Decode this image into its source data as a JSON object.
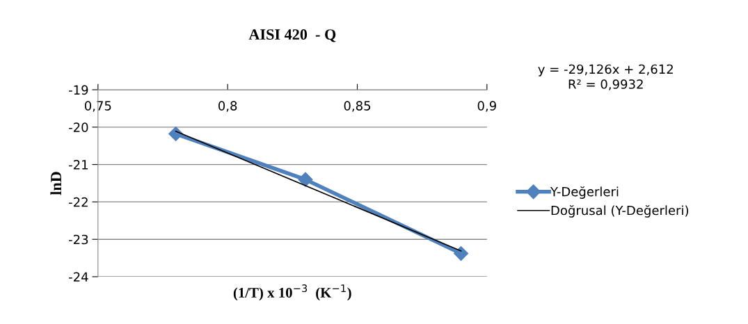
{
  "chart_data": {
    "type": "line",
    "title": "AISI 420  - Q",
    "xlabel": "(1/T) x 10$^{−3}$  (K$^{−1}$)",
    "ylabel": "lnD",
    "x": [
      0.78,
      0.83,
      0.89
    ],
    "series": [
      {
        "name": "Y-Değerleri",
        "color": "#4f81bd",
        "values": [
          -20.18,
          -21.4,
          -23.38
        ],
        "marker": "diamond"
      },
      {
        "name": "Doğrusal (Y-Değerleri)",
        "color": "#000000",
        "x": [
          0.78,
          0.89
        ],
        "values": [
          -20.11,
          -23.31
        ],
        "marker": "none"
      }
    ],
    "xlim": [
      0.75,
      0.9
    ],
    "xticks": [
      {
        "value": 0.75,
        "label": "0,75"
      },
      {
        "value": 0.8,
        "label": "0,8"
      },
      {
        "value": 0.85,
        "label": "0,85"
      },
      {
        "value": 0.9,
        "label": "0,9"
      }
    ],
    "ylim": [
      -24,
      -19
    ],
    "yticks": [
      -24,
      -23,
      -22,
      -21,
      -20,
      -19
    ],
    "grid": "y",
    "legend": "right",
    "annotations": [
      "y = -29,126x + 2,612\nR² = 0,9932"
    ]
  }
}
